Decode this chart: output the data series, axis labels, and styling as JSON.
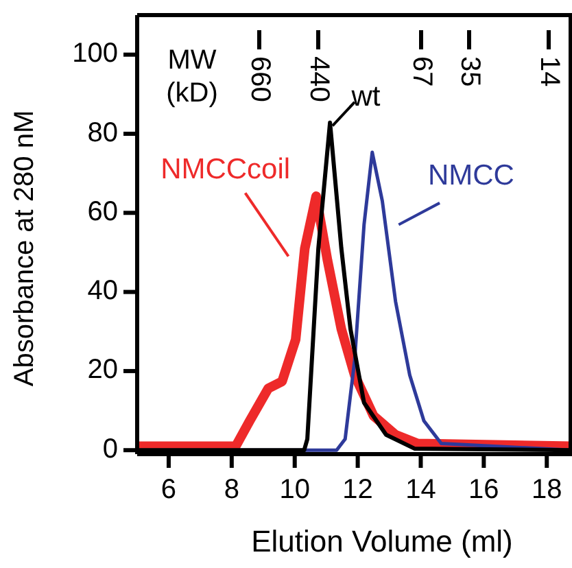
{
  "chart_data": {
    "type": "line",
    "xlabel": "Elution Volume (ml)",
    "ylabel": "Absorbance at 280 nM",
    "xlim": [
      5,
      18.8
    ],
    "ylim": [
      -1,
      110
    ],
    "xticks": [
      6,
      8,
      10,
      12,
      14,
      16,
      18
    ],
    "yticks": [
      0,
      20,
      40,
      60,
      80,
      100
    ],
    "annotations": [
      "MW\n(kD)",
      "660",
      "440",
      "67",
      "35",
      "14"
    ],
    "grid": false,
    "line_style": "solid",
    "marker": "none",
    "series": [
      {
        "name": "wt",
        "color": "#000000",
        "x": [
          5,
          10.3,
          10.4,
          10.75,
          11.12,
          11.48,
          11.77,
          12.2,
          12.9,
          13.8,
          18.8
        ],
        "values": [
          0,
          0,
          2.8,
          51,
          82.8,
          51,
          30.6,
          12,
          3.9,
          0.4,
          0
        ]
      },
      {
        "name": "NMCC",
        "color": "#2e3a9a",
        "x": [
          5,
          11.33,
          11.6,
          11.9,
          12.2,
          12.46,
          12.78,
          13.2,
          13.65,
          14.1,
          14.65,
          18.8
        ],
        "values": [
          0,
          0,
          2.8,
          22.6,
          57,
          75.3,
          63,
          37.6,
          19,
          7.4,
          1.7,
          0
        ]
      },
      {
        "name": "NMCCcoil",
        "color": "#ee2a2a",
        "x": [
          5,
          8.13,
          8.57,
          9.16,
          9.6,
          10.03,
          10.32,
          10.68,
          11.04,
          11.48,
          11.9,
          12.5,
          13.2,
          13.9,
          18.8
        ],
        "values": [
          1,
          1,
          7.4,
          15.6,
          17.4,
          28,
          51,
          64.2,
          48,
          30.6,
          19,
          8.7,
          3.9,
          1.7,
          1
        ]
      }
    ]
  }
}
